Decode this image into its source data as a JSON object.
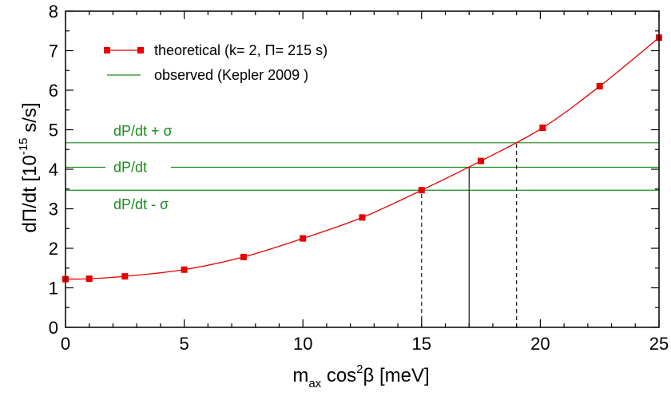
{
  "chart_data": {
    "type": "line",
    "xlim": [
      0,
      25
    ],
    "ylim": [
      0,
      8
    ],
    "x_ticks": [
      "0",
      "5",
      "10",
      "15",
      "20",
      "25"
    ],
    "y_ticks": [
      "0",
      "1",
      "2",
      "3",
      "4",
      "5",
      "6",
      "7",
      "8"
    ],
    "xlabel": {
      "main": "m",
      "sub": "ax",
      "mid": " cos",
      "sup": "2",
      "tail": "β [meV]"
    },
    "ylabel": {
      "pre": "dΠ/dt  [10",
      "sup": "-15",
      "post": " s/s]"
    },
    "series": [
      {
        "name": "theoretical (k= 2, Π= 215 s)",
        "color": "#e60000",
        "marker": "square",
        "x": [
          0,
          1,
          2.5,
          5,
          7.5,
          10,
          12.5,
          15,
          17.5,
          20.1,
          22.5,
          25
        ],
        "y": [
          1.22,
          1.23,
          1.29,
          1.46,
          1.78,
          2.25,
          2.78,
          3.47,
          4.21,
          5.05,
          6.1,
          7.33
        ]
      }
    ],
    "observed": {
      "name": "observed (Kepler 2009 )",
      "color": "#1a8c1a",
      "lines": [
        {
          "label": "dP/dt + σ",
          "y": 4.67,
          "x_marker": 19
        },
        {
          "label": "dP/dt",
          "y": 4.05,
          "x_marker": 17
        },
        {
          "label": "dP/dt - σ",
          "y": 3.47,
          "x_marker": 15
        }
      ]
    },
    "legend_position": "top-left",
    "grid": false
  }
}
